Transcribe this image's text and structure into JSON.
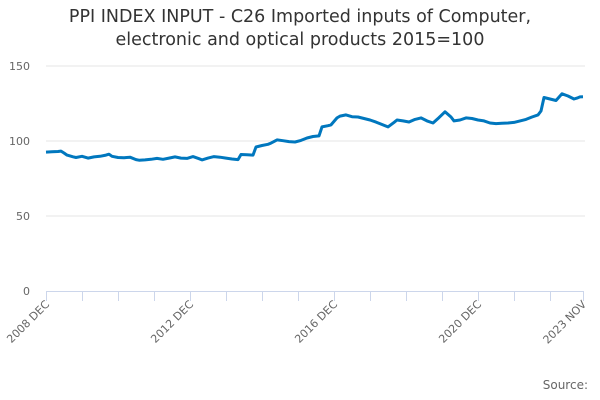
{
  "chart_data": {
    "type": "line",
    "title": "PPI INDEX INPUT - C26 Imported inputs of Computer, electronic and optical products 2015=100",
    "title_lines": [
      "PPI INDEX INPUT - C26 Imported inputs of Computer,",
      "electronic and optical products 2015=100"
    ],
    "xlabel": "",
    "ylabel": "",
    "ylim": [
      0,
      150
    ],
    "yticks": [
      0,
      50,
      100,
      150
    ],
    "xtick_labels": [
      "2008 DEC",
      "2012 DEC",
      "2016 DEC",
      "2020 DEC",
      "2023 NOV"
    ],
    "x_range": [
      "2008 DEC",
      "2023 NOV"
    ],
    "grid": true,
    "legend": "none",
    "series": [
      {
        "name": "PPI INDEX INPUT - C26 Imported inputs of Computer, electronic and optical products 2015=100",
        "color": "#0077be",
        "points": [
          [
            "2008 DEC",
            92.6
          ],
          [
            "2009 FEB",
            92.8
          ],
          [
            "2009 APR",
            93.0
          ],
          [
            "2009 MAY",
            93.3
          ],
          [
            "2009 JUN",
            92.0
          ],
          [
            "2009 JUL",
            90.6
          ],
          [
            "2009 SEP",
            89.5
          ],
          [
            "2009 OCT",
            89.0
          ],
          [
            "2009 DEC",
            89.8
          ],
          [
            "2010 FEB",
            88.6
          ],
          [
            "2010 APR",
            89.4
          ],
          [
            "2010 JUN",
            89.8
          ],
          [
            "2010 AUG",
            90.6
          ],
          [
            "2010 SEP",
            91.2
          ],
          [
            "2010 OCT",
            89.8
          ],
          [
            "2010 DEC",
            89.0
          ],
          [
            "2011 FEB",
            88.9
          ],
          [
            "2011 APR",
            89.2
          ],
          [
            "2011 JUN",
            87.6
          ],
          [
            "2011 JUL",
            87.2
          ],
          [
            "2011 SEP",
            87.4
          ],
          [
            "2011 NOV",
            87.8
          ],
          [
            "2012 JAN",
            88.4
          ],
          [
            "2012 MAR",
            87.8
          ],
          [
            "2012 MAY",
            88.6
          ],
          [
            "2012 JUL",
            89.4
          ],
          [
            "2012 AUG",
            89.0
          ],
          [
            "2012 SEP",
            88.6
          ],
          [
            "2012 NOV",
            88.4
          ],
          [
            "2013 JAN",
            89.6
          ],
          [
            "2013 MAR",
            88.2
          ],
          [
            "2013 APR",
            87.4
          ],
          [
            "2013 JUN",
            88.6
          ],
          [
            "2013 AUG",
            89.6
          ],
          [
            "2013 OCT",
            89.2
          ],
          [
            "2013 DEC",
            88.6
          ],
          [
            "2014 FEB",
            88.0
          ],
          [
            "2014 APR",
            87.6
          ],
          [
            "2014 MAY",
            91.0
          ],
          [
            "2014 JUL",
            90.8
          ],
          [
            "2014 SEP",
            90.6
          ],
          [
            "2014 OCT",
            96.0
          ],
          [
            "2014 DEC",
            97.0
          ],
          [
            "2015 FEB",
            97.8
          ],
          [
            "2015 MAR",
            98.6
          ],
          [
            "2015 MAY",
            100.7
          ],
          [
            "2015 JUL",
            100.2
          ],
          [
            "2015 SEP",
            99.6
          ],
          [
            "2015 NOV",
            99.3
          ],
          [
            "2016 JAN",
            100.4
          ],
          [
            "2016 MAR",
            102.0
          ],
          [
            "2016 MAY",
            103.0
          ],
          [
            "2016 JUL",
            103.4
          ],
          [
            "2016 AUG",
            109.4
          ],
          [
            "2016 OCT",
            110.2
          ],
          [
            "2016 NOV",
            110.7
          ],
          [
            "2017 JAN",
            115.4
          ],
          [
            "2017 FEB",
            116.6
          ],
          [
            "2017 APR",
            117.4
          ],
          [
            "2017 JUN",
            116.2
          ],
          [
            "2017 AUG",
            116.0
          ],
          [
            "2017 OCT",
            115.0
          ],
          [
            "2017 DEC",
            114.0
          ],
          [
            "2018 FEB",
            112.6
          ],
          [
            "2018 APR",
            111.0
          ],
          [
            "2018 JUN",
            109.4
          ],
          [
            "2018 AUG",
            112.4
          ],
          [
            "2018 SEP",
            114.0
          ],
          [
            "2018 NOV",
            113.4
          ],
          [
            "2019 JAN",
            112.7
          ],
          [
            "2019 MAR",
            114.4
          ],
          [
            "2019 MAY",
            115.4
          ],
          [
            "2019 JUL",
            113.4
          ],
          [
            "2019 SEP",
            112.0
          ],
          [
            "2019 NOV",
            115.6
          ],
          [
            "2020 JAN",
            119.5
          ],
          [
            "2020 MAR",
            116.0
          ],
          [
            "2020 APR",
            113.4
          ],
          [
            "2020 JUN",
            114.0
          ],
          [
            "2020 AUG",
            115.4
          ],
          [
            "2020 OCT",
            115.0
          ],
          [
            "2020 DEC",
            114.0
          ],
          [
            "2021 FEB",
            113.4
          ],
          [
            "2021 APR",
            112.0
          ],
          [
            "2021 JUN",
            111.6
          ],
          [
            "2021 AUG",
            111.8
          ],
          [
            "2021 OCT",
            112.0
          ],
          [
            "2021 DEC",
            112.4
          ],
          [
            "2022 FEB",
            113.4
          ],
          [
            "2022 APR",
            114.4
          ],
          [
            "2022 JUN",
            116.0
          ],
          [
            "2022 AUG",
            117.4
          ],
          [
            "2022 SEP",
            120.0
          ],
          [
            "2022 OCT",
            129.0
          ],
          [
            "2022 DEC",
            128.0
          ],
          [
            "2023 FEB",
            127.0
          ],
          [
            "2023 APR",
            131.5
          ],
          [
            "2023 JUN",
            130.0
          ],
          [
            "2023 AUG",
            128.0
          ],
          [
            "2023 SEP",
            128.6
          ],
          [
            "2023 OCT",
            129.4
          ],
          [
            "2023 NOV",
            129.5
          ]
        ]
      }
    ]
  },
  "caption": "PPI INDEX INPUT - C26 Imported inputs of Computer, electronic and optical products 2015=100",
  "source_label": "Source:",
  "colors": {
    "line": "#0077be",
    "grid": "#e6e6e6",
    "axis": "#ccd6eb",
    "text": "#333333",
    "tick_text": "#666666"
  }
}
